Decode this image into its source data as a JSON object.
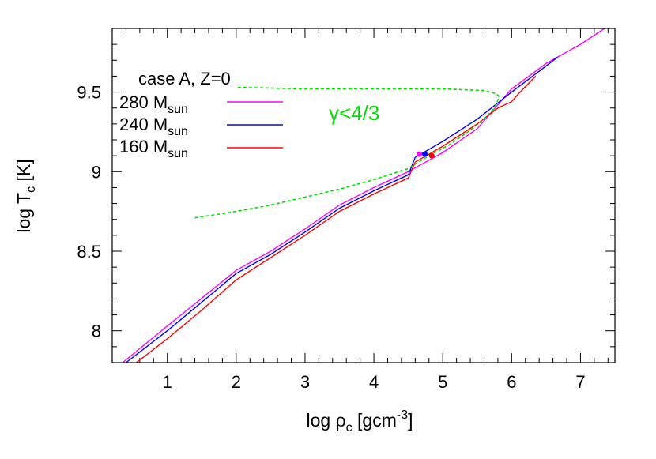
{
  "chart_data": {
    "type": "line",
    "xlabel": {
      "base": "log ρ",
      "sub": "c",
      "mid": " [gcm",
      "sup": "-3",
      "end": "]"
    },
    "ylabel": {
      "base": "log T",
      "sub": "c",
      "end": " [K]"
    },
    "xlim": [
      0.2,
      7.5
    ],
    "ylim": [
      7.8,
      9.9
    ],
    "x_ticks": [
      1,
      2,
      3,
      4,
      5,
      6,
      7
    ],
    "x_tick_labels": [
      "1",
      "2",
      "3",
      "4",
      "5",
      "6",
      "7"
    ],
    "y_ticks": [
      8,
      8.5,
      9,
      9.5
    ],
    "y_tick_labels": [
      "8",
      "8.5",
      "9",
      "9.5"
    ],
    "grid": false,
    "legend": {
      "title": "case A, Z=0",
      "position": "top-left"
    },
    "annotation": {
      "text": "γ<4/3",
      "color": "#00e000"
    },
    "series": [
      {
        "name": "280 M",
        "name_sub": "sun",
        "color": "#ff00ff",
        "x": [
          0.35,
          1.0,
          2.0,
          2.5,
          3.0,
          3.5,
          4.0,
          4.5,
          5.0,
          5.5,
          6.0,
          6.5,
          7.0,
          7.35
        ],
        "y": [
          7.8,
          8.03,
          8.38,
          8.5,
          8.64,
          8.79,
          8.9,
          9.0,
          9.12,
          9.27,
          9.52,
          9.68,
          9.8,
          9.9
        ]
      },
      {
        "name": "240 M",
        "name_sub": "sun",
        "color": "#0000ff",
        "x": [
          0.4,
          1.0,
          2.0,
          2.5,
          3.0,
          3.5,
          4.0,
          4.5,
          4.6,
          5.0,
          5.5,
          6.0,
          6.67
        ],
        "y": [
          7.8,
          8.0,
          8.36,
          8.48,
          8.62,
          8.77,
          8.88,
          8.98,
          9.09,
          9.19,
          9.33,
          9.5,
          9.72
        ]
      },
      {
        "name": "160 M",
        "name_sub": "sun",
        "color": "#ff0000",
        "x": [
          0.55,
          1.0,
          1.5,
          2.0,
          2.5,
          3.0,
          3.5,
          4.0,
          4.5,
          4.6,
          5.0,
          5.5,
          5.8,
          6.0,
          6.1,
          6.35
        ],
        "y": [
          7.8,
          7.95,
          8.13,
          8.32,
          8.46,
          8.6,
          8.75,
          8.86,
          8.96,
          9.06,
          9.16,
          9.3,
          9.4,
          9.44,
          9.49,
          9.6
        ]
      },
      {
        "name": "",
        "color": "#00e000",
        "dashed": true,
        "x": [
          1.4,
          2.0,
          2.5,
          3.0,
          3.5,
          4.0,
          4.5,
          4.8,
          5.1,
          5.4,
          5.6,
          5.75,
          5.82,
          5.78,
          5.6,
          5.0,
          4.0,
          3.0,
          2.0
        ],
        "y": [
          8.71,
          8.75,
          8.79,
          8.84,
          8.89,
          8.95,
          9.02,
          9.1,
          9.17,
          9.26,
          9.33,
          9.4,
          9.47,
          9.49,
          9.51,
          9.52,
          9.52,
          9.52,
          9.53
        ]
      }
    ],
    "markers": [
      {
        "x": 4.66,
        "y": 9.11,
        "color": "#ff00ff"
      },
      {
        "x": 4.74,
        "y": 9.11,
        "color": "#0000ff"
      },
      {
        "x": 4.84,
        "y": 9.1,
        "color": "#ff0000"
      }
    ]
  }
}
